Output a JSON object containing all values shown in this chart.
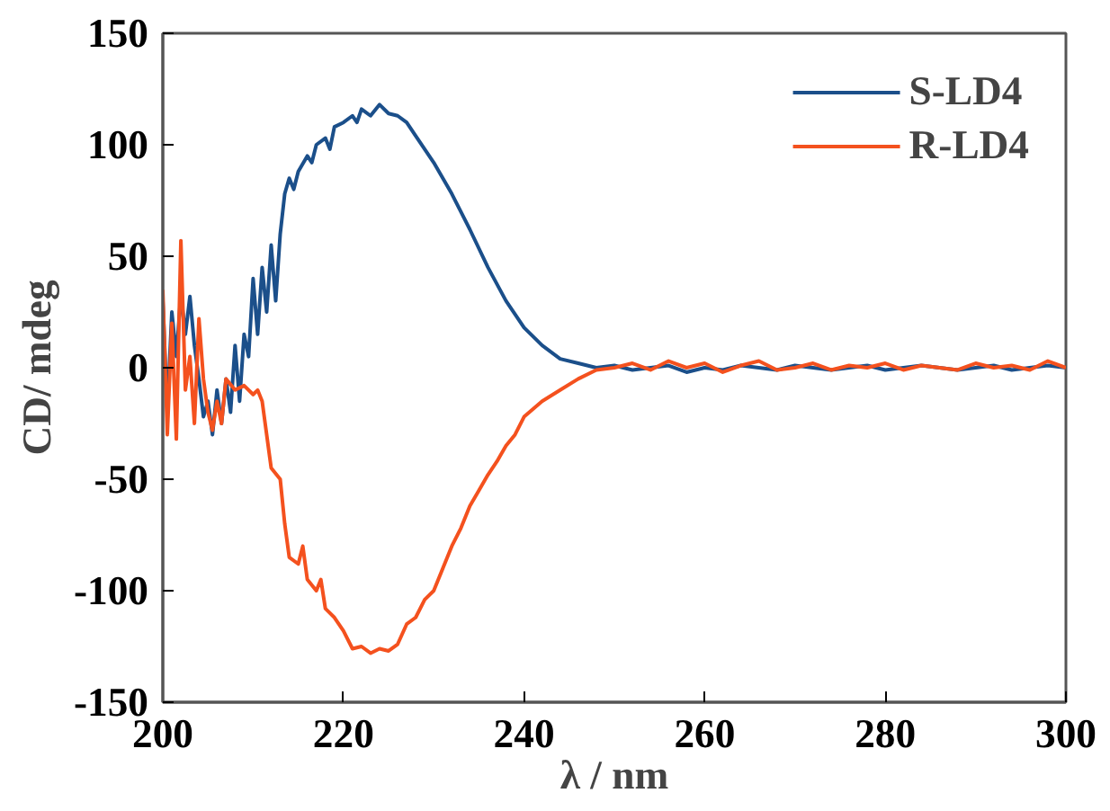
{
  "chart_data": {
    "type": "line",
    "xlabel": "λ / nm",
    "ylabel": "CD/ mdeg",
    "xlim": [
      200,
      300
    ],
    "xticks": [
      200,
      220,
      240,
      260,
      280,
      300
    ],
    "ylim": [
      -150,
      150
    ],
    "yticks": [
      -150,
      -100,
      -50,
      0,
      50,
      100,
      150
    ],
    "grid": false,
    "legend": "top right",
    "marker": "none",
    "line_style": "solid",
    "series": [
      {
        "name": "S-LD4",
        "color": "#1b4f8a",
        "x": [
          200,
          200.5,
          201,
          201.5,
          202,
          202.5,
          203,
          203.5,
          204,
          204.5,
          205,
          205.5,
          206,
          206.5,
          207,
          207.5,
          208,
          208.5,
          209,
          209.5,
          210,
          210.5,
          211,
          211.5,
          212,
          212.5,
          213,
          213.5,
          214,
          214.5,
          215,
          216,
          216.5,
          217,
          218,
          218.5,
          219,
          220,
          221,
          221.5,
          222,
          223,
          224,
          225,
          226,
          227,
          228,
          230,
          232,
          234,
          236,
          238,
          240,
          242,
          244,
          246,
          248,
          250,
          252,
          254,
          256,
          258,
          260,
          262,
          264,
          266,
          268,
          270,
          272,
          274,
          276,
          278,
          280,
          282,
          284,
          286,
          288,
          290,
          292,
          294,
          296,
          298,
          300
        ],
        "values": [
          30,
          -20,
          25,
          5,
          33,
          15,
          32,
          10,
          -5,
          -22,
          -15,
          -30,
          -10,
          -25,
          -5,
          -20,
          10,
          -15,
          15,
          5,
          40,
          15,
          45,
          25,
          55,
          30,
          60,
          78,
          85,
          80,
          88,
          95,
          92,
          100,
          103,
          98,
          108,
          110,
          113,
          110,
          116,
          113,
          118,
          114,
          113,
          110,
          104,
          92,
          78,
          62,
          45,
          30,
          18,
          10,
          4,
          2,
          0,
          1,
          -1,
          0,
          1,
          -2,
          0,
          -1,
          1,
          0,
          -1,
          1,
          0,
          -1,
          0,
          1,
          -1,
          0,
          1,
          0,
          -1,
          0,
          1,
          -1,
          0,
          1,
          0
        ]
      },
      {
        "name": "R-LD4",
        "color": "#f4511e",
        "x": [
          200,
          200.5,
          201,
          201.5,
          202,
          202.5,
          203,
          203.5,
          204,
          204.5,
          205,
          205.5,
          206,
          206.5,
          207,
          208,
          209,
          210,
          210.5,
          211,
          212,
          213,
          213.5,
          214,
          215,
          215.5,
          216,
          217,
          217.5,
          218,
          219,
          220,
          221,
          222,
          223,
          224,
          225,
          226,
          227,
          228,
          229,
          230,
          231,
          232,
          233,
          234,
          235,
          236,
          237,
          238,
          239,
          240,
          242,
          244,
          246,
          248,
          250,
          252,
          254,
          256,
          258,
          260,
          262,
          264,
          266,
          268,
          270,
          272,
          274,
          276,
          278,
          280,
          282,
          284,
          286,
          288,
          290,
          292,
          294,
          296,
          298,
          300
        ],
        "values": [
          35,
          -30,
          20,
          -32,
          57,
          -10,
          5,
          -25,
          22,
          -5,
          -20,
          -28,
          -15,
          -25,
          -5,
          -10,
          -8,
          -12,
          -10,
          -15,
          -45,
          -50,
          -70,
          -85,
          -88,
          -80,
          -95,
          -100,
          -95,
          -108,
          -112,
          -118,
          -126,
          -125,
          -128,
          -126,
          -127,
          -124,
          -115,
          -112,
          -104,
          -100,
          -90,
          -80,
          -72,
          -62,
          -55,
          -48,
          -42,
          -35,
          -30,
          -22,
          -15,
          -10,
          -5,
          -1,
          0,
          2,
          -1,
          3,
          0,
          2,
          -2,
          1,
          3,
          -1,
          0,
          2,
          -1,
          1,
          0,
          2,
          -1,
          1,
          0,
          -1,
          2,
          0,
          1,
          -1,
          3,
          0
        ]
      }
    ]
  }
}
